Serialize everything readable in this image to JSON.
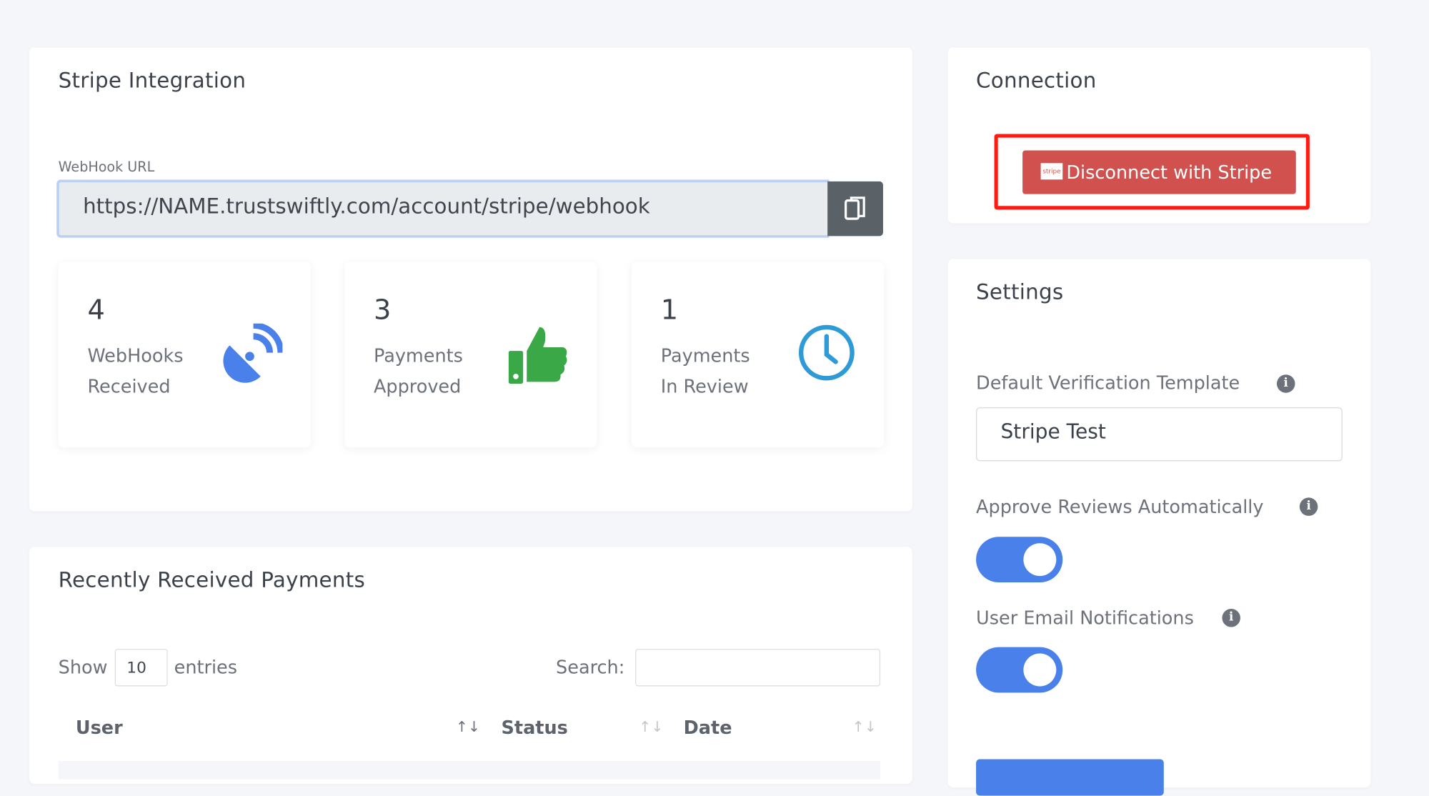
{
  "integration": {
    "title": "Stripe Integration",
    "webhook_label": "WebHook URL",
    "webhook_url": "https://NAME.trustswiftly.com/account/stripe/webhook",
    "copy_icon": "copy-icon",
    "stats": [
      {
        "value": "4",
        "label1": "WebHooks",
        "label2": "Received",
        "icon": "satellite-dish-icon",
        "color": "#4a80ea"
      },
      {
        "value": "3",
        "label1": "Payments",
        "label2": "Approved",
        "icon": "thumbs-up-icon",
        "color": "#3aa847"
      },
      {
        "value": "1",
        "label1": "Payments",
        "label2": "In Review",
        "icon": "clock-icon",
        "color": "#2e9ad6"
      }
    ]
  },
  "payments": {
    "title": "Recently Received Payments",
    "show_label": "Show",
    "entries_value": "10",
    "entries_label": "entries",
    "search_label": "Search:",
    "search_value": "",
    "columns": [
      "User",
      "Status",
      "Date"
    ],
    "sort_icon": "↑↓"
  },
  "connection": {
    "title": "Connection",
    "button_label": "Disconnect with Stripe",
    "stripe_logo": "stripe",
    "button_color": "#d0514d",
    "highlight_color": "#ff1a12"
  },
  "settings": {
    "title": "Settings",
    "template_label": "Default Verification Template",
    "template_value": "Stripe Test",
    "approve_label": "Approve Reviews Automatically",
    "approve_on": true,
    "email_label": "User Email Notifications",
    "email_on": true,
    "info_icon": "i",
    "accent": "#4a80ea"
  }
}
